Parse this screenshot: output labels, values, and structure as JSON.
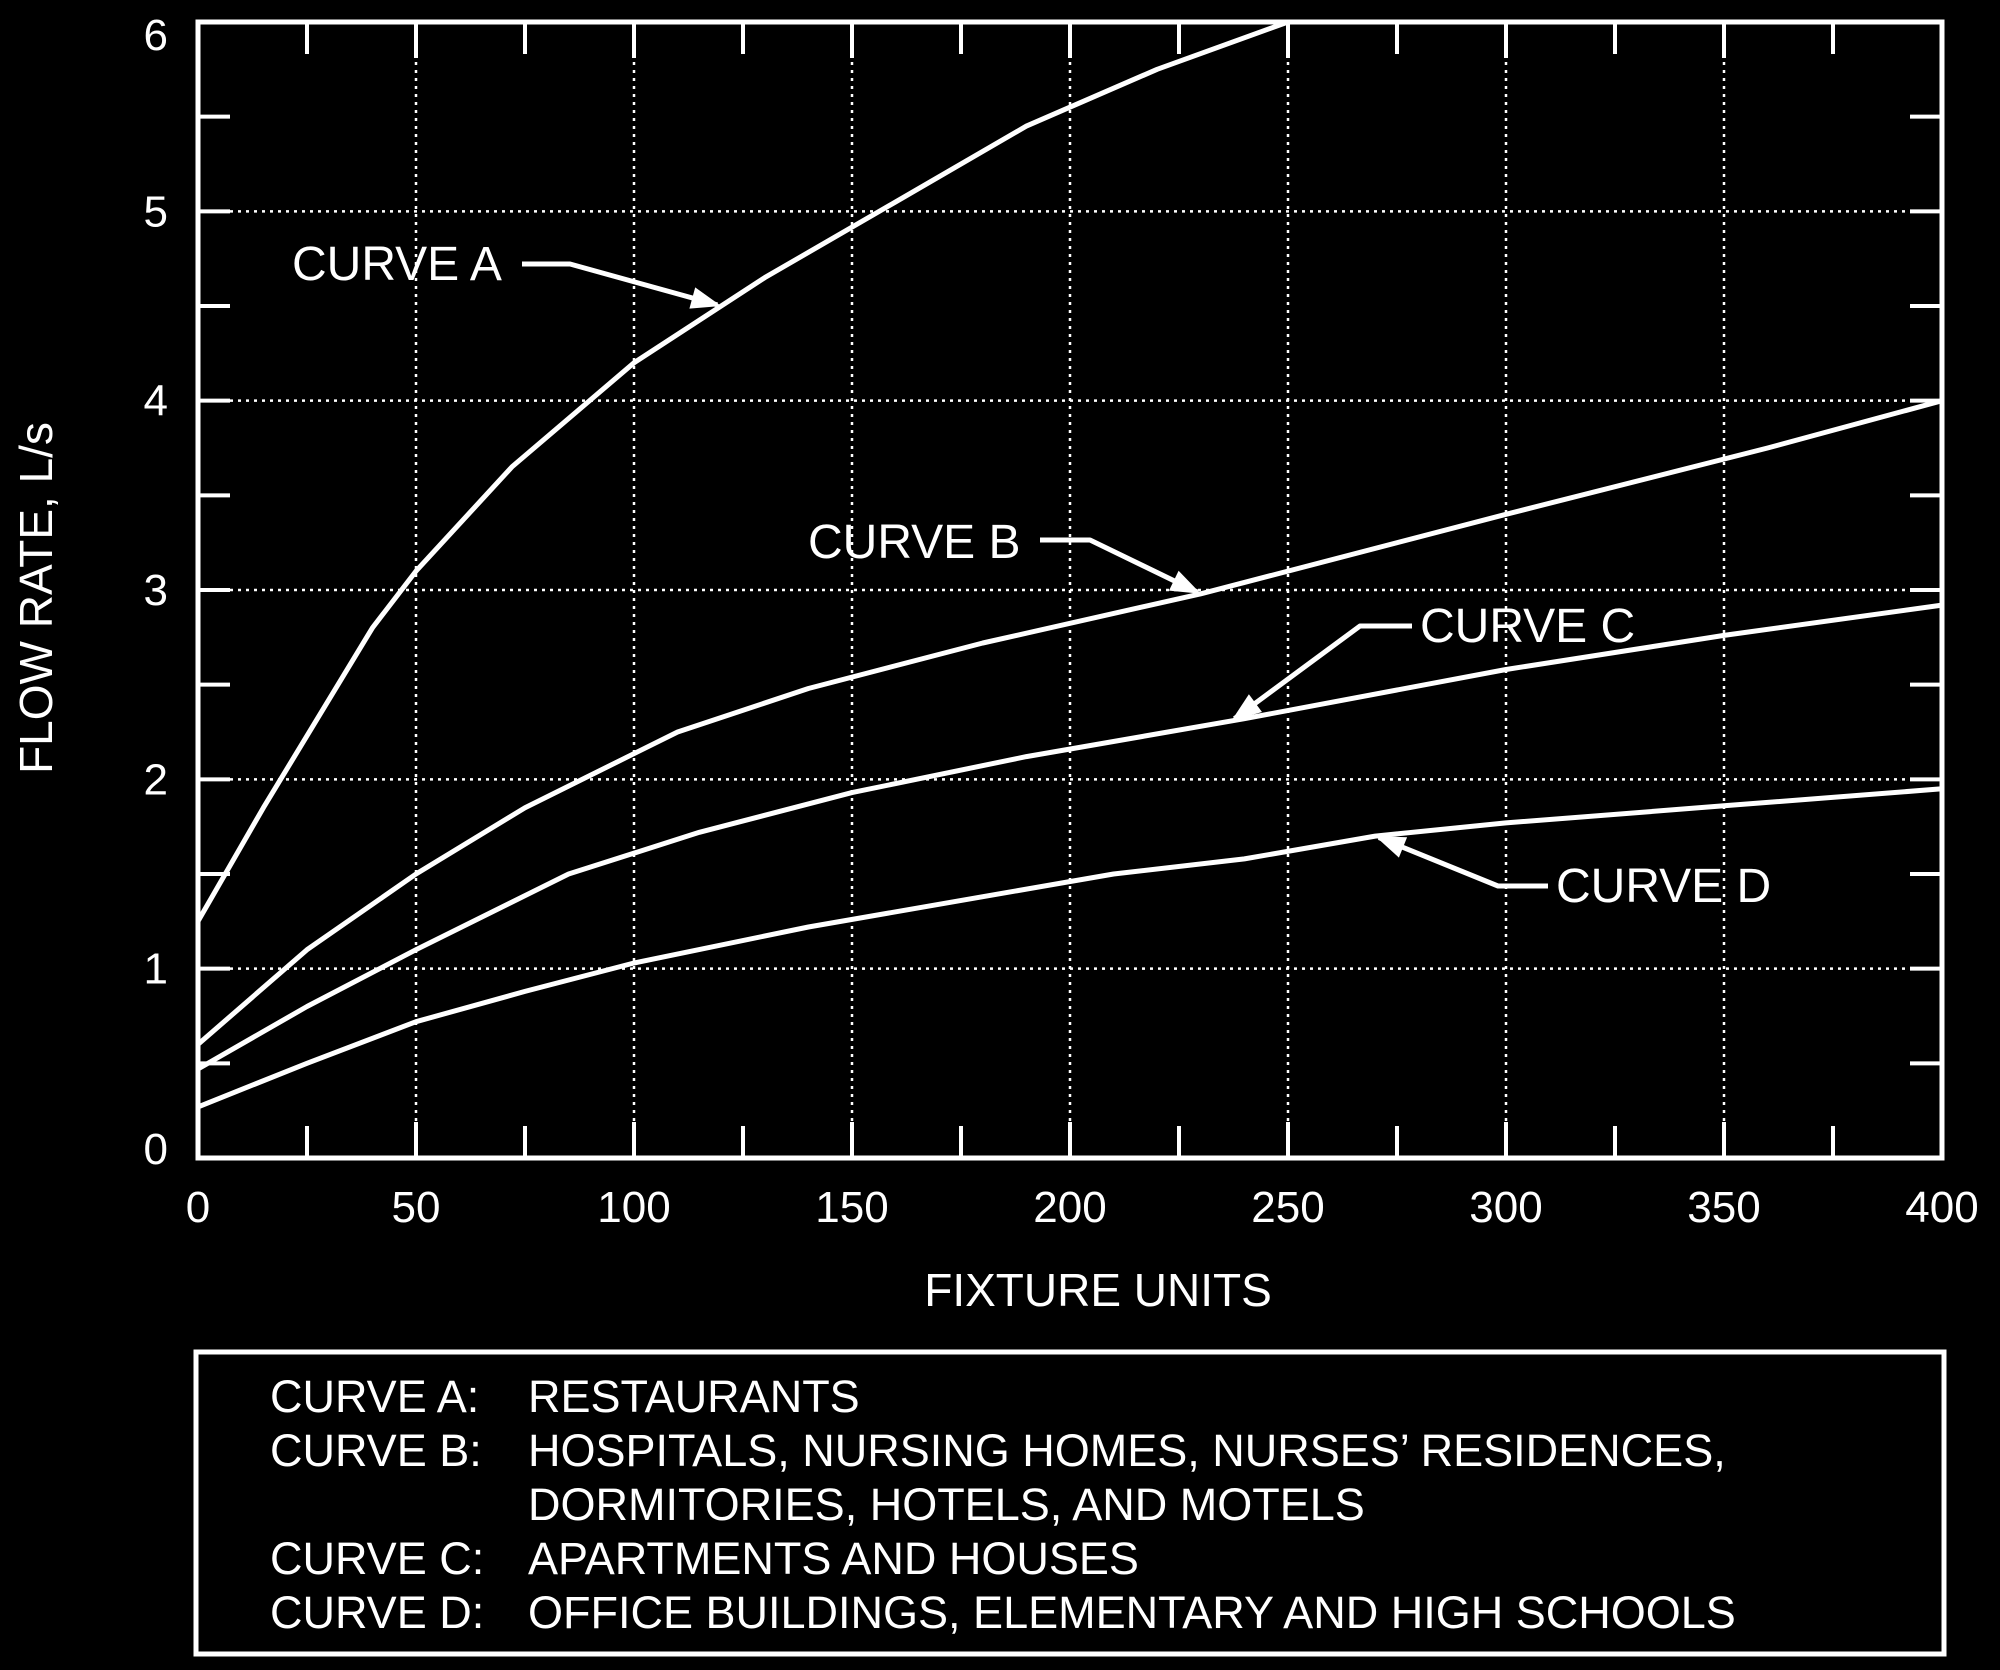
{
  "chart_data": {
    "type": "line",
    "title": "",
    "xlabel": "FIXTURE UNITS",
    "ylabel": "FLOW RATE, L/s",
    "xlim": [
      0,
      400
    ],
    "ylim": [
      0,
      6
    ],
    "x_ticks": [
      0,
      50,
      100,
      150,
      200,
      250,
      300,
      350,
      400
    ],
    "y_ticks": [
      0,
      1,
      2,
      3,
      4,
      5,
      6
    ],
    "x_tick_labels": [
      "0",
      "50",
      "100",
      "150",
      "200",
      "250",
      "300",
      "350",
      "400"
    ],
    "y_tick_labels": [
      "0",
      "1",
      "2",
      "3",
      "4",
      "5",
      "6"
    ],
    "grid": true,
    "series": [
      {
        "name": "CURVE A",
        "x": [
          0,
          15,
          40,
          50,
          72,
          100,
          130,
          160,
          190,
          220,
          250
        ],
        "y": [
          1.25,
          1.85,
          2.8,
          3.1,
          3.65,
          4.2,
          4.65,
          5.05,
          5.45,
          5.75,
          6.0
        ]
      },
      {
        "name": "CURVE B",
        "x": [
          0,
          25,
          50,
          75,
          110,
          140,
          180,
          230,
          300,
          360,
          400
        ],
        "y": [
          0.6,
          1.1,
          1.5,
          1.85,
          2.25,
          2.48,
          2.72,
          2.98,
          3.4,
          3.75,
          4.0
        ]
      },
      {
        "name": "CURVE C",
        "x": [
          0,
          25,
          50,
          85,
          115,
          150,
          190,
          240,
          300,
          350,
          400
        ],
        "y": [
          0.47,
          0.8,
          1.1,
          1.5,
          1.72,
          1.93,
          2.12,
          2.32,
          2.58,
          2.76,
          2.92
        ]
      },
      {
        "name": "CURVE D",
        "x": [
          0,
          25,
          50,
          75,
          100,
          140,
          180,
          210,
          240,
          270,
          300,
          350,
          400
        ],
        "y": [
          0.27,
          0.5,
          0.72,
          0.88,
          1.03,
          1.22,
          1.38,
          1.5,
          1.58,
          1.7,
          1.77,
          1.86,
          1.95
        ]
      }
    ],
    "annotations": [
      {
        "text": "CURVE A",
        "series": "CURVE A",
        "at_x": 120
      },
      {
        "text": "CURVE B",
        "series": "CURVE B",
        "at_x": 230
      },
      {
        "text": "CURVE C",
        "series": "CURVE C",
        "at_x": 237
      },
      {
        "text": "CURVE D",
        "series": "CURVE D",
        "at_x": 270
      }
    ],
    "legend_placement": "bottom",
    "legend": [
      {
        "key": "CURVE A:",
        "lines": [
          "RESTAURANTS"
        ]
      },
      {
        "key": "CURVE B:",
        "lines": [
          "HOSPITALS, NURSING HOMES, NURSES’ RESIDENCES,",
          "DORMITORIES, HOTELS, AND MOTELS"
        ]
      },
      {
        "key": "CURVE C:",
        "lines": [
          "APARTMENTS AND HOUSES"
        ]
      },
      {
        "key": "CURVE D:",
        "lines": [
          "OFFICE BUILDINGS, ELEMENTARY AND HIGH SCHOOLS"
        ]
      }
    ]
  }
}
